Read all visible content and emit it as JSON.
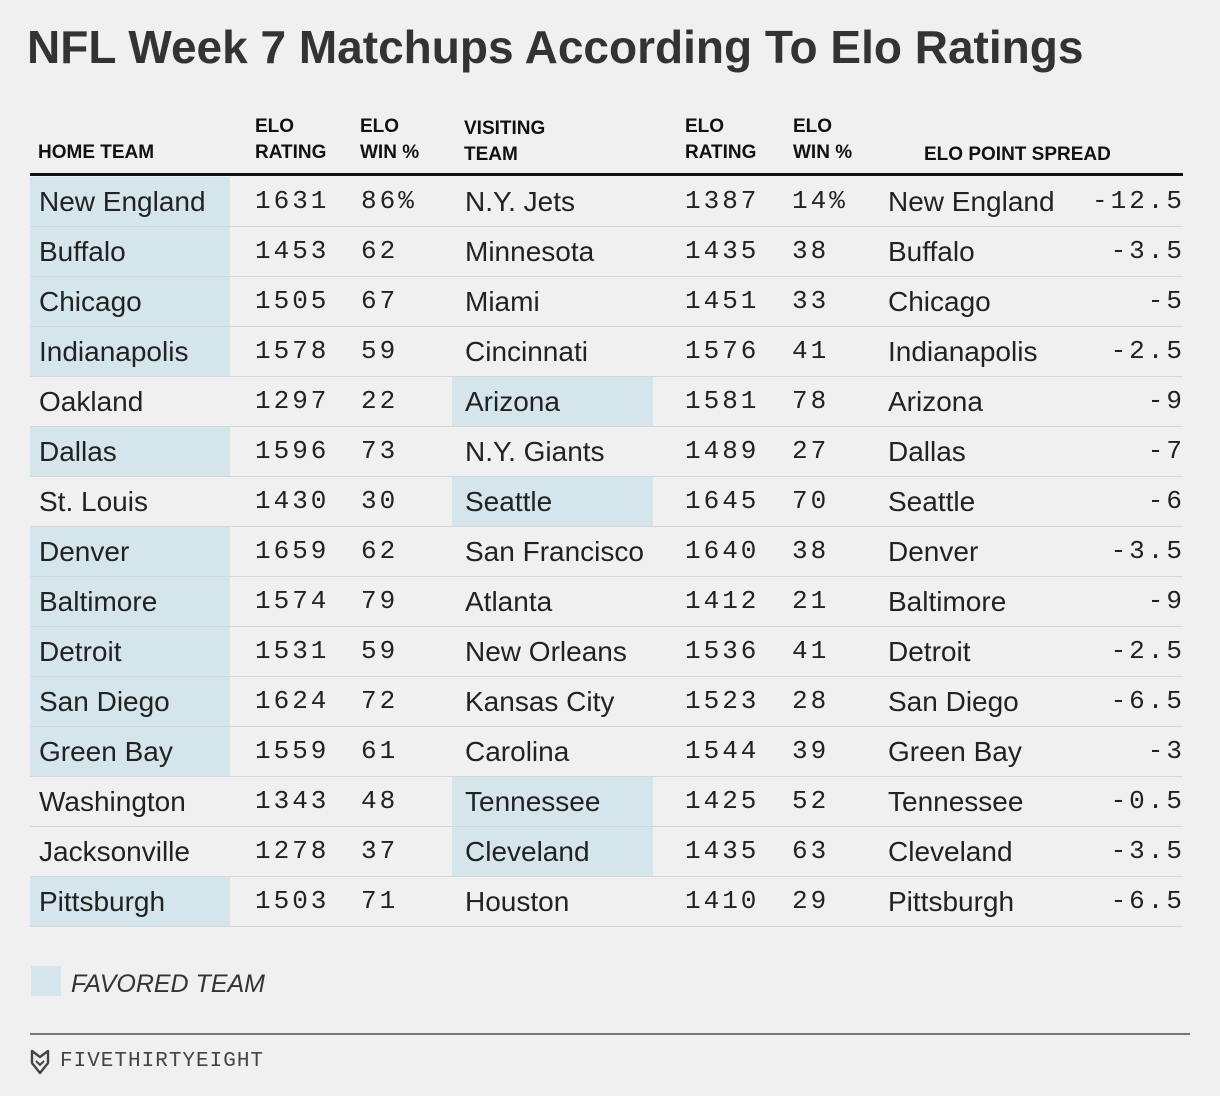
{
  "title": "NFL Week 7 Matchups According To Elo Ratings",
  "colors": {
    "favored_highlight": "#d5e5ec",
    "background": "#f0f0f0"
  },
  "headers": {
    "home_team": "HOME TEAM",
    "home_rating": [
      "ELO",
      "RATING"
    ],
    "home_win": [
      "ELO",
      "WIN %"
    ],
    "visiting_team": [
      "VISITING",
      "TEAM"
    ],
    "visiting_rating": [
      "ELO",
      "RATING"
    ],
    "visiting_win": [
      "ELO",
      "WIN %"
    ],
    "point_spread": "ELO POINT SPREAD"
  },
  "chart_data": {
    "type": "table",
    "title": "NFL Week 7 Matchups According To Elo Ratings",
    "columns": [
      "HOME TEAM",
      "ELO RATING",
      "ELO WIN %",
      "VISITING TEAM",
      "ELO RATING",
      "ELO WIN %",
      "ELO POINT SPREAD"
    ],
    "rows": [
      {
        "home": "New England",
        "home_rating": "1631",
        "home_win": "86%",
        "visitor": "N.Y. Jets",
        "visitor_rating": "1387",
        "visitor_win": "14%",
        "spread_team": "New England",
        "spread": "-12.5",
        "favored": "home"
      },
      {
        "home": "Buffalo",
        "home_rating": "1453",
        "home_win": "62",
        "visitor": "Minnesota",
        "visitor_rating": "1435",
        "visitor_win": "38",
        "spread_team": "Buffalo",
        "spread": "-3.5",
        "favored": "home"
      },
      {
        "home": "Chicago",
        "home_rating": "1505",
        "home_win": "67",
        "visitor": "Miami",
        "visitor_rating": "1451",
        "visitor_win": "33",
        "spread_team": "Chicago",
        "spread": "-5",
        "favored": "home"
      },
      {
        "home": "Indianapolis",
        "home_rating": "1578",
        "home_win": "59",
        "visitor": "Cincinnati",
        "visitor_rating": "1576",
        "visitor_win": "41",
        "spread_team": "Indianapolis",
        "spread": "-2.5",
        "favored": "home"
      },
      {
        "home": "Oakland",
        "home_rating": "1297",
        "home_win": "22",
        "visitor": "Arizona",
        "visitor_rating": "1581",
        "visitor_win": "78",
        "spread_team": "Arizona",
        "spread": "-9",
        "favored": "visitor"
      },
      {
        "home": "Dallas",
        "home_rating": "1596",
        "home_win": "73",
        "visitor": "N.Y. Giants",
        "visitor_rating": "1489",
        "visitor_win": "27",
        "spread_team": "Dallas",
        "spread": "-7",
        "favored": "home"
      },
      {
        "home": "St. Louis",
        "home_rating": "1430",
        "home_win": "30",
        "visitor": "Seattle",
        "visitor_rating": "1645",
        "visitor_win": "70",
        "spread_team": "Seattle",
        "spread": "-6",
        "favored": "visitor"
      },
      {
        "home": "Denver",
        "home_rating": "1659",
        "home_win": "62",
        "visitor": "San Francisco",
        "visitor_rating": "1640",
        "visitor_win": "38",
        "spread_team": "Denver",
        "spread": "-3.5",
        "favored": "home"
      },
      {
        "home": "Baltimore",
        "home_rating": "1574",
        "home_win": "79",
        "visitor": "Atlanta",
        "visitor_rating": "1412",
        "visitor_win": "21",
        "spread_team": "Baltimore",
        "spread": "-9",
        "favored": "home"
      },
      {
        "home": "Detroit",
        "home_rating": "1531",
        "home_win": "59",
        "visitor": "New Orleans",
        "visitor_rating": "1536",
        "visitor_win": "41",
        "spread_team": "Detroit",
        "spread": "-2.5",
        "favored": "home"
      },
      {
        "home": "San Diego",
        "home_rating": "1624",
        "home_win": "72",
        "visitor": "Kansas City",
        "visitor_rating": "1523",
        "visitor_win": "28",
        "spread_team": "San Diego",
        "spread": "-6.5",
        "favored": "home"
      },
      {
        "home": "Green Bay",
        "home_rating": "1559",
        "home_win": "61",
        "visitor": "Carolina",
        "visitor_rating": "1544",
        "visitor_win": "39",
        "spread_team": "Green Bay",
        "spread": "-3",
        "favored": "home"
      },
      {
        "home": "Washington",
        "home_rating": "1343",
        "home_win": "48",
        "visitor": "Tennessee",
        "visitor_rating": "1425",
        "visitor_win": "52",
        "spread_team": "Tennessee",
        "spread": "-0.5",
        "favored": "visitor"
      },
      {
        "home": "Jacksonville",
        "home_rating": "1278",
        "home_win": "37",
        "visitor": "Cleveland",
        "visitor_rating": "1435",
        "visitor_win": "63",
        "spread_team": "Cleveland",
        "spread": "-3.5",
        "favored": "visitor"
      },
      {
        "home": "Pittsburgh",
        "home_rating": "1503",
        "home_win": "71",
        "visitor": "Houston",
        "visitor_rating": "1410",
        "visitor_win": "29",
        "spread_team": "Pittsburgh",
        "spread": "-6.5",
        "favored": "home"
      }
    ]
  },
  "legend": {
    "label": "FAVORED TEAM"
  },
  "footer": {
    "brand": "FIVETHIRTYEIGHT",
    "logo_icon": "fox-logo-icon"
  }
}
